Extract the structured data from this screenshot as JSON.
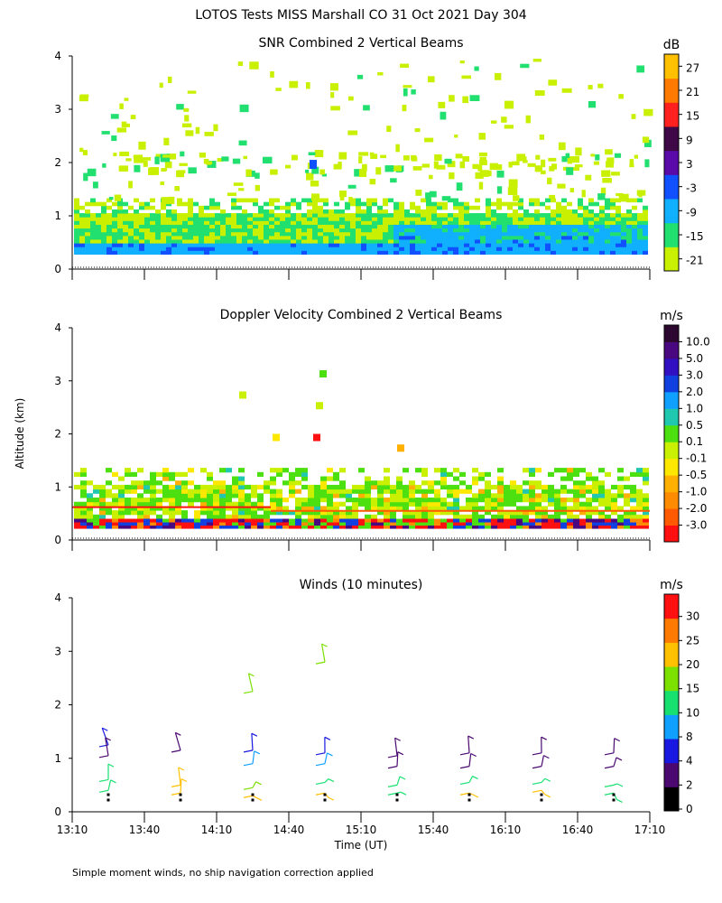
{
  "figure": {
    "title": "LOTOS Tests MISS Marshall CO  31 Oct 2021 Day 304",
    "footnote": "Simple moment winds, no ship navigation correction applied"
  },
  "chart_data": [
    {
      "type": "heatmap",
      "title": "SNR Combined 2 Vertical Beams",
      "ylabel": "",
      "xlabel": "",
      "ylim": [
        0,
        4
      ],
      "yticks": [
        "0",
        "1",
        "2",
        "3",
        "4"
      ],
      "xlim_minutes": [
        790,
        1030
      ],
      "colorbar": {
        "unit": "dB",
        "labels": [
          "-21",
          "-15",
          "-9",
          "-3",
          "3",
          "9",
          "15",
          "21",
          "27"
        ],
        "colors": [
          "#c8f000",
          "#22e070",
          "#10b0ff",
          "#1050ff",
          "#5a0aa8",
          "#3d0845",
          "#ff2020",
          "#ff7a00",
          "#ffc000"
        ]
      },
      "layers": [
        {
          "altitude_range_km": [
            0.25,
            1.3
          ],
          "dominant_snr_db": "-21 to -9",
          "note": "strong near-surface echo layer"
        },
        {
          "altitude_range_km": [
            1.3,
            4.0
          ],
          "dominant_snr_db": "-21 to -15",
          "note": "sparse weak echoes"
        }
      ]
    },
    {
      "type": "heatmap",
      "title": "Doppler Velocity Combined 2 Vertical Beams",
      "ylabel": "Altitude (km)",
      "xlabel": "",
      "ylim": [
        0,
        4
      ],
      "yticks": [
        "0",
        "1",
        "2",
        "3",
        "4"
      ],
      "xlim_minutes": [
        790,
        1030
      ],
      "colorbar": {
        "unit": "m/s",
        "labels": [
          "-3.0",
          "-2.0",
          "-1.0",
          "-0.5",
          "-0.1",
          "0.1",
          "0.5",
          "1.0",
          "2.0",
          "3.0",
          "5.0",
          "10.0"
        ],
        "colors": [
          "#ff1010",
          "#ff5a00",
          "#ff8c00",
          "#ffb000",
          "#ffe800",
          "#c8f000",
          "#4ce010",
          "#20c8b0",
          "#10a0ff",
          "#1040e0",
          "#3010c0",
          "#4a0880",
          "#2c0830"
        ]
      },
      "layers": [
        {
          "altitude_range_km": [
            0.3,
            1.3
          ],
          "dominant_velocity_ms": "-0.5 to 0.5"
        }
      ]
    },
    {
      "type": "scatter",
      "title": "Winds (10 minutes)",
      "ylabel": "",
      "xlabel": "Time (UT)",
      "ylim": [
        0,
        4
      ],
      "yticks": [
        "0",
        "1",
        "2",
        "3",
        "4"
      ],
      "xlim_minutes": [
        790,
        1030
      ],
      "xticks": [
        {
          "label": "13:10",
          "minutes": 790
        },
        {
          "label": "13:40",
          "minutes": 820
        },
        {
          "label": "14:10",
          "minutes": 850
        },
        {
          "label": "14:40",
          "minutes": 880
        },
        {
          "label": "15:10",
          "minutes": 910
        },
        {
          "label": "15:40",
          "minutes": 940
        },
        {
          "label": "16:10",
          "minutes": 970
        },
        {
          "label": "16:40",
          "minutes": 1000
        },
        {
          "label": "17:10",
          "minutes": 1030
        }
      ],
      "colorbar": {
        "unit": "m/s",
        "labels": [
          "0",
          "2",
          "4",
          "8",
          "10",
          "15",
          "20",
          "25",
          "30"
        ],
        "colors": [
          "#000000",
          "#4a0870",
          "#1818e0",
          "#10a0ff",
          "#18e070",
          "#7ce000",
          "#ffc000",
          "#ff7a00",
          "#ff1010"
        ]
      },
      "profiles": [
        {
          "time": "13:25",
          "barbs": [
            {
              "alt_km": 1.25,
              "speed_ms": 4
            },
            {
              "alt_km": 1.05,
              "speed_ms": 3
            },
            {
              "alt_km": 0.6,
              "speed_ms": 12
            },
            {
              "alt_km": 0.4,
              "speed_ms": 14
            }
          ]
        },
        {
          "time": "13:55",
          "barbs": [
            {
              "alt_km": 1.15,
              "speed_ms": 3
            },
            {
              "alt_km": 0.5,
              "speed_ms": 22
            },
            {
              "alt_km": 0.35,
              "speed_ms": 20
            }
          ]
        },
        {
          "time": "14:25",
          "barbs": [
            {
              "alt_km": 2.25,
              "speed_ms": 16
            },
            {
              "alt_km": 1.15,
              "speed_ms": 5
            },
            {
              "alt_km": 0.9,
              "speed_ms": 8
            },
            {
              "alt_km": 0.45,
              "speed_ms": 16
            },
            {
              "alt_km": 0.3,
              "speed_ms": 20
            }
          ]
        },
        {
          "time": "14:55",
          "barbs": [
            {
              "alt_km": 2.8,
              "speed_ms": 16
            },
            {
              "alt_km": 1.1,
              "speed_ms": 5
            },
            {
              "alt_km": 0.9,
              "speed_ms": 8
            },
            {
              "alt_km": 0.55,
              "speed_ms": 10
            },
            {
              "alt_km": 0.35,
              "speed_ms": 24
            }
          ]
        },
        {
          "time": "15:25",
          "barbs": [
            {
              "alt_km": 1.05,
              "speed_ms": 3
            },
            {
              "alt_km": 0.85,
              "speed_ms": 2
            },
            {
              "alt_km": 0.5,
              "speed_ms": 12
            },
            {
              "alt_km": 0.35,
              "speed_ms": 12
            }
          ]
        },
        {
          "time": "15:55",
          "barbs": [
            {
              "alt_km": 1.1,
              "speed_ms": 3
            },
            {
              "alt_km": 0.85,
              "speed_ms": 2
            },
            {
              "alt_km": 0.55,
              "speed_ms": 12
            },
            {
              "alt_km": 0.35,
              "speed_ms": 24
            }
          ]
        },
        {
          "time": "16:25",
          "barbs": [
            {
              "alt_km": 1.1,
              "speed_ms": 3
            },
            {
              "alt_km": 0.85,
              "speed_ms": 2
            },
            {
              "alt_km": 0.55,
              "speed_ms": 14
            },
            {
              "alt_km": 0.4,
              "speed_ms": 24
            }
          ]
        },
        {
          "time": "16:55",
          "barbs": [
            {
              "alt_km": 1.1,
              "speed_ms": 3
            },
            {
              "alt_km": 0.85,
              "speed_ms": 2
            },
            {
              "alt_km": 0.5,
              "speed_ms": 12
            },
            {
              "alt_km": 0.35,
              "speed_ms": 12
            }
          ]
        }
      ]
    }
  ]
}
